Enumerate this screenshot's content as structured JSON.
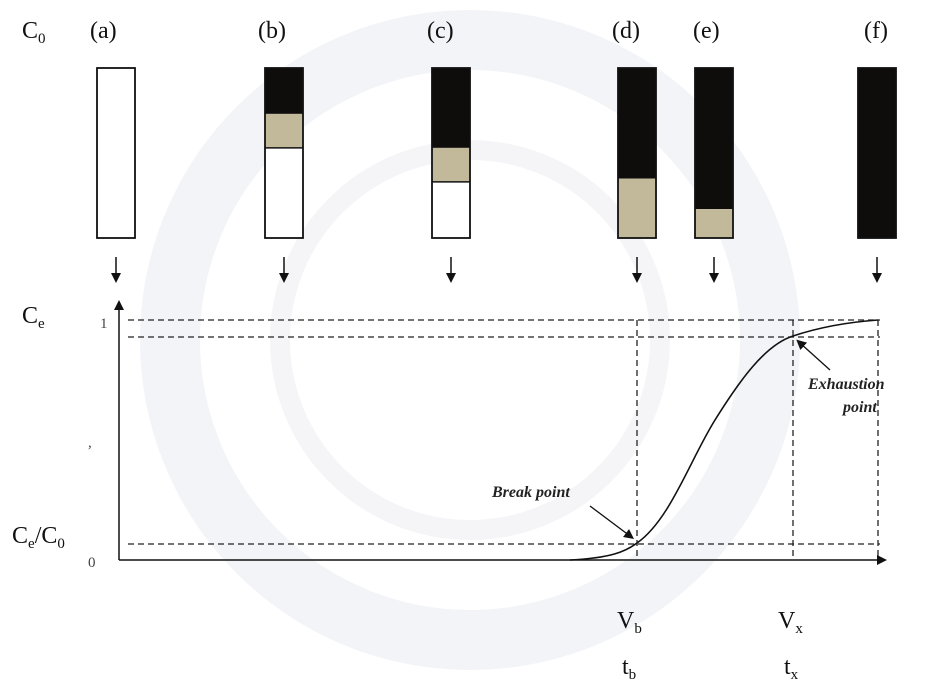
{
  "inlet_label": {
    "main": "C",
    "sub": "0"
  },
  "columns": [
    {
      "label": "(a)",
      "saturated": 0.0,
      "zone": 0.0
    },
    {
      "label": "(b)",
      "saturated": 0.27,
      "zone": 0.2
    },
    {
      "label": "(c)",
      "saturated": 0.47,
      "zone": 0.2
    },
    {
      "label": "(d)",
      "saturated": 0.65,
      "zone": 0.35
    },
    {
      "label": "(e)",
      "saturated": 0.83,
      "zone": 0.17
    },
    {
      "label": "(f)",
      "saturated": 1.0,
      "zone": 0.0
    }
  ],
  "axes": {
    "y_top_label": {
      "main": "C",
      "sub": "e"
    },
    "y_bottom_label": {
      "main": "C",
      "sub1": "e",
      "slash": "/C",
      "sub2": "0"
    },
    "y_tick_top": "1",
    "y_tick_bottom": "0",
    "y_tick_mid": ","
  },
  "annotations": {
    "break_point": "Break point",
    "exhaustion_line1": "Exhaustion",
    "exhaustion_line2": "point"
  },
  "x_labels": {
    "vb": {
      "main": "V",
      "sub": "b"
    },
    "vx": {
      "main": "V",
      "sub": "x"
    },
    "tb": {
      "main": "t",
      "sub": "b"
    },
    "tx": {
      "main": "t",
      "sub": "x"
    }
  },
  "colors": {
    "saturated": "#0f0d0b",
    "mass_transfer_zone": "#c2b89a",
    "fresh": "#ffffff",
    "line": "#111111"
  }
}
